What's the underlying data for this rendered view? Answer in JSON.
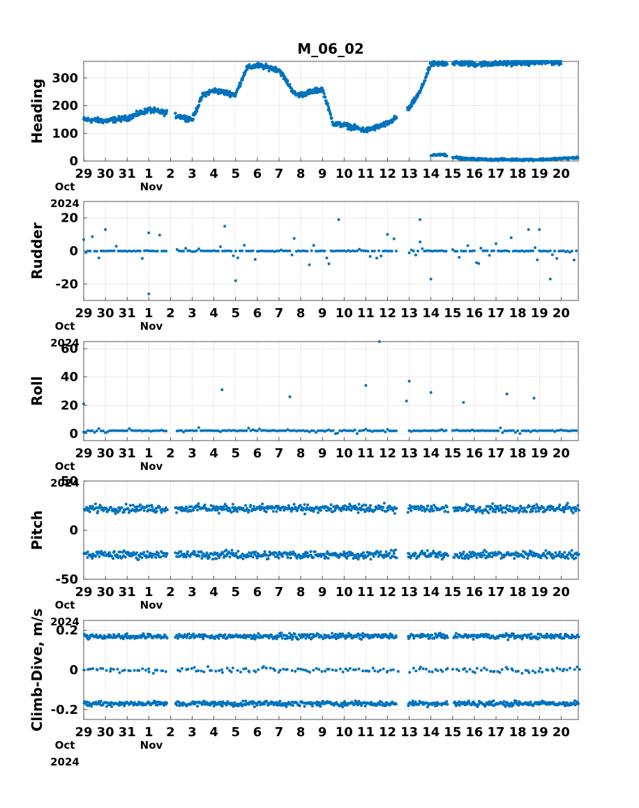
{
  "chart_data": {
    "title": "M_06_02",
    "type": "scatter",
    "x_axis": {
      "tick_labels": [
        "29",
        "30",
        "31",
        "1",
        "2",
        "3",
        "4",
        "5",
        "6",
        "7",
        "8",
        "9",
        "10",
        "11",
        "12",
        "13",
        "14",
        "15",
        "16",
        "17",
        "18",
        "19",
        "20"
      ],
      "month_labels": [
        "Oct",
        "Nov"
      ],
      "year_label": "2024",
      "range": [
        "2024-10-29",
        "2024-11-20T19:00"
      ]
    },
    "color": "#0072BD",
    "grid": true,
    "panels": [
      {
        "ylabel": "Heading",
        "ylim": [
          0,
          360
        ],
        "yticks": [
          "0",
          "100",
          "200",
          "300"
        ],
        "trend": [
          [
            "2024-10-29",
            150
          ],
          [
            "2024-10-30",
            145
          ],
          [
            "2024-10-31",
            155
          ],
          [
            "2024-11-01",
            185
          ],
          [
            "2024-11-02",
            170
          ],
          [
            "2024-11-03",
            150
          ],
          [
            "2024-11-03T12:00",
            240
          ],
          [
            "2024-11-04",
            255
          ],
          [
            "2024-11-05",
            240
          ],
          [
            "2024-11-05T12:00",
            335
          ],
          [
            "2024-11-06",
            345
          ],
          [
            "2024-11-07",
            330
          ],
          [
            "2024-11-07T18:00",
            240
          ],
          [
            "2024-11-08",
            240
          ],
          [
            "2024-11-09",
            260
          ],
          [
            "2024-11-09T12:00",
            135
          ],
          [
            "2024-11-10",
            130
          ],
          [
            "2024-11-11",
            110
          ],
          [
            "2024-11-12",
            135
          ],
          [
            "2024-11-13",
            190
          ],
          [
            "2024-11-13T12:00",
            250
          ],
          [
            "2024-11-14",
            350
          ],
          [
            "2024-11-15",
            355
          ],
          [
            "2024-11-16",
            350
          ],
          [
            "2024-11-17",
            352
          ],
          [
            "2024-11-18",
            355
          ],
          [
            "2024-11-19",
            356
          ],
          [
            "2024-11-20",
            358
          ]
        ],
        "wrapped_trend": [
          [
            "2024-11-14",
            20
          ],
          [
            "2024-11-14T12:00",
            25
          ],
          [
            "2024-11-15",
            15
          ],
          [
            "2024-11-15T12:00",
            8
          ],
          [
            "2024-11-17",
            5
          ],
          [
            "2024-11-19",
            5
          ],
          [
            "2024-11-20T19:00",
            12
          ]
        ],
        "spread": 14
      },
      {
        "ylabel": "Rudder",
        "ylim": [
          -30,
          30
        ],
        "yticks": [
          "-20",
          "0",
          "20"
        ],
        "baseline": 0,
        "scatter_spread": 7,
        "outliers": [
          [
            "2024-10-30",
            13
          ],
          [
            "2024-11-01",
            -26
          ],
          [
            "2024-11-01",
            11
          ],
          [
            "2024-11-04T12:00",
            15
          ],
          [
            "2024-11-05",
            -18
          ],
          [
            "2024-11-09T18:00",
            19
          ],
          [
            "2024-11-12",
            10
          ],
          [
            "2024-11-13T12:00",
            19
          ],
          [
            "2024-11-14",
            -17
          ],
          [
            "2024-11-18T12:00",
            13
          ],
          [
            "2024-11-19",
            13
          ],
          [
            "2024-11-19T12:00",
            -17
          ]
        ]
      },
      {
        "ylabel": "Roll",
        "ylim": [
          -5,
          65
        ],
        "yticks": [
          "0",
          "20",
          "40",
          "60"
        ],
        "baseline": 2,
        "scatter_spread": 1.5,
        "outliers": [
          [
            "2024-10-29",
            21
          ],
          [
            "2024-11-04T09:00",
            31
          ],
          [
            "2024-11-07T12:00",
            26
          ],
          [
            "2024-11-11",
            34
          ],
          [
            "2024-11-11T15:00",
            65
          ],
          [
            "2024-11-12T21:00",
            23
          ],
          [
            "2024-11-13",
            37
          ],
          [
            "2024-11-14",
            29
          ],
          [
            "2024-11-15T12:00",
            22
          ],
          [
            "2024-11-17T12:00",
            28
          ],
          [
            "2024-11-18T18:00",
            25
          ]
        ]
      },
      {
        "ylabel": "Pitch",
        "ylim": [
          -50,
          50
        ],
        "yticks": [
          "-50",
          "0",
          "50"
        ],
        "bands": [
          22,
          -25
        ],
        "band_spread": 6
      },
      {
        "ylabel": "Climb-Dive, m/s",
        "ylim": [
          -0.25,
          0.25
        ],
        "yticks": [
          "-0.2",
          "0",
          "0.2"
        ],
        "bands": [
          0.17,
          0.0,
          -0.17
        ],
        "band_spread": 0.02
      }
    ]
  }
}
